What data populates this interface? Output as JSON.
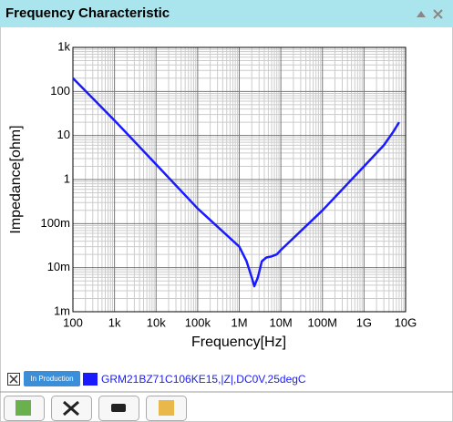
{
  "panel_title": "Frequency Characteristic",
  "status_badge": "In Production",
  "chart_data": {
    "type": "line",
    "xlabel": "Frequency[Hz]",
    "ylabel": "Impedance[ohm]",
    "xscale": "log",
    "yscale": "log",
    "grid": true,
    "minor_grid": true,
    "xlim": [
      100,
      10000000000
    ],
    "ylim": [
      0.001,
      1000
    ],
    "xticks": [
      100,
      {
        "value": 1000,
        "label": "1k"
      },
      {
        "value": 10000,
        "label": "10k"
      },
      {
        "value": 100000,
        "label": "100k"
      },
      {
        "value": 1000000,
        "label": "1M"
      },
      {
        "value": 10000000,
        "label": "10M"
      },
      {
        "value": 100000000,
        "label": "100M"
      },
      {
        "value": 1000000000,
        "label": "1G"
      },
      {
        "value": 10000000000,
        "label": "10G"
      }
    ],
    "yticks": [
      {
        "value": 1000,
        "label": "1k"
      },
      100,
      10,
      1,
      {
        "value": 0.1,
        "label": "100m"
      },
      {
        "value": 0.01,
        "label": "10m"
      },
      {
        "value": 0.001,
        "label": "1m"
      }
    ],
    "x": [
      100,
      1000,
      10000,
      100000,
      1000000,
      1500000,
      2000000,
      2300000,
      2800000,
      3500000,
      4500000,
      6000000,
      8000000,
      10000000,
      100000000,
      1000000000,
      3000000000,
      5000000000,
      7000000000
    ],
    "series": [
      {
        "name": "GRM21BZ71C106KE15,|Z|,DC0V,25degC",
        "color": "#1a1aff",
        "values": [
          200,
          22,
          2.2,
          0.22,
          0.03,
          0.014,
          0.006,
          0.0038,
          0.006,
          0.014,
          0.017,
          0.018,
          0.02,
          0.025,
          0.2,
          2,
          6,
          12,
          20
        ]
      }
    ]
  }
}
